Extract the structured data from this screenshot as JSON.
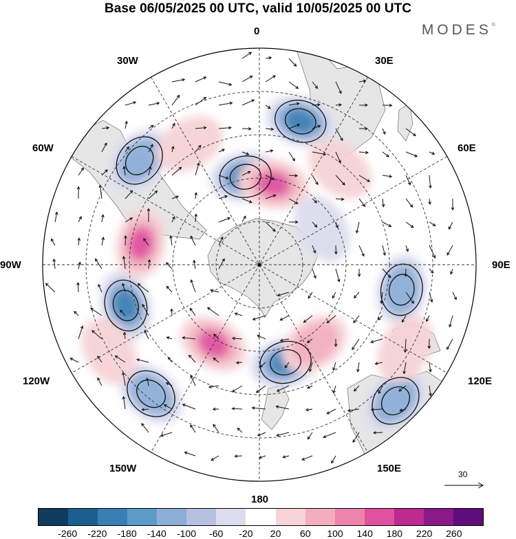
{
  "title": "Base 06/05/2025 00 UTC, valid 10/05/2025 00 UTC",
  "brand": "MODES",
  "brand_mark": "©",
  "longitude_labels": {
    "lon_0": "0",
    "lon_30e": "30E",
    "lon_60e": "60E",
    "lon_90e": "90E",
    "lon_120e": "120E",
    "lon_150e": "150E",
    "lon_180": "180",
    "lon_150w": "150W",
    "lon_120w": "120W",
    "lon_90w": "90W",
    "lon_60w": "60W",
    "lon_30w": "30W"
  },
  "reference_vector": {
    "label": "30"
  },
  "colorbar": {
    "colors": [
      "#0f3b5e",
      "#1c5f8e",
      "#3a7fb4",
      "#5d9bc9",
      "#8eaed8",
      "#b8c0df",
      "#dcdcee",
      "#ffffff",
      "#f6d3d6",
      "#f3aebd",
      "#ee84ac",
      "#e0519f",
      "#bb2b90",
      "#8a1a88",
      "#5e0d7c"
    ],
    "ticks": [
      "-260",
      "-220",
      "-180",
      "-140",
      "-100",
      "-60",
      "-20",
      "20",
      "60",
      "100",
      "140",
      "180",
      "220",
      "260"
    ]
  },
  "field_anomalies": [
    {
      "type": "negative",
      "level": 3,
      "lon": 16,
      "colat": 62
    },
    {
      "type": "negative",
      "level": 3,
      "lon": -9,
      "colat": 37
    },
    {
      "type": "negative",
      "level": 2,
      "lon": -49,
      "colat": 66
    },
    {
      "type": "negative",
      "level": 3,
      "lon": -107,
      "colat": 58
    },
    {
      "type": "negative",
      "level": 3,
      "lon": 165,
      "colat": 42
    },
    {
      "type": "negative",
      "level": 2,
      "lon": 135,
      "colat": 80
    },
    {
      "type": "negative",
      "level": 2,
      "lon": -140,
      "colat": 70
    },
    {
      "type": "negative",
      "level": 2,
      "lon": 100,
      "colat": 60
    },
    {
      "type": "negative",
      "level": 1,
      "lon": 60,
      "colat": 30
    },
    {
      "type": "positive",
      "level": 3,
      "lon": 10,
      "colat": 34
    },
    {
      "type": "positive",
      "level": 3,
      "lon": -80,
      "colat": 50
    },
    {
      "type": "positive",
      "level": 3,
      "lon": -150,
      "colat": 38
    },
    {
      "type": "positive",
      "level": 2,
      "lon": 145,
      "colat": 40
    },
    {
      "type": "positive",
      "level": 1,
      "lon": 40,
      "colat": 52
    },
    {
      "type": "positive",
      "level": 1,
      "lon": 120,
      "colat": 70
    },
    {
      "type": "positive",
      "level": 1,
      "lon": -30,
      "colat": 58
    },
    {
      "type": "positive",
      "level": 1,
      "lon": -120,
      "colat": 72
    }
  ]
}
